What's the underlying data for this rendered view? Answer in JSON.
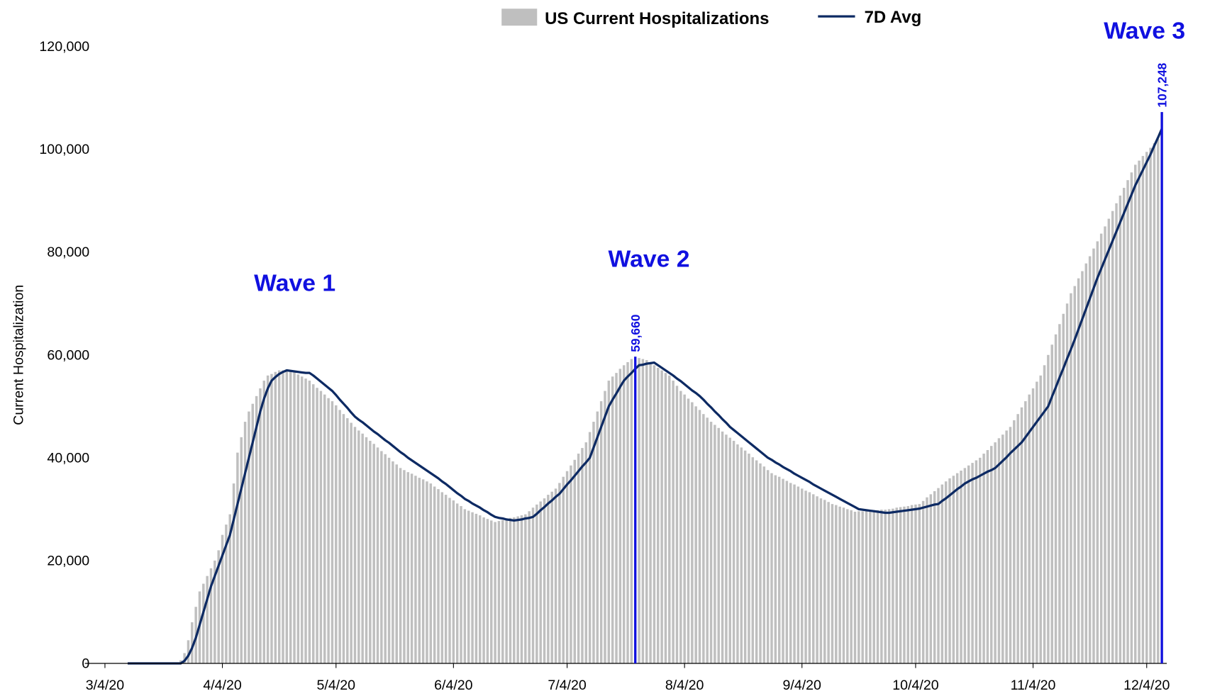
{
  "chart_data": {
    "type": "bar",
    "y_label": "Current Hospitalization",
    "ylim": [
      0,
      120000
    ],
    "yticks": [
      0,
      {
        "value": 20000,
        "label": "20,000"
      },
      {
        "value": 40000,
        "label": "40,000"
      },
      {
        "value": 60000,
        "label": "60,000"
      },
      {
        "value": 80000,
        "label": "80,000"
      },
      {
        "value": 100000,
        "label": "100,000"
      },
      {
        "value": 120000,
        "label": "120,000"
      }
    ],
    "legend": "top",
    "categories": [
      "3/4/20",
      null,
      null,
      null,
      null,
      null,
      null,
      null,
      null,
      null,
      null,
      null,
      null,
      null,
      null,
      null,
      null,
      null,
      null,
      null,
      null,
      null,
      null,
      null,
      null,
      null,
      null,
      null,
      null,
      null,
      null,
      "4/4/20",
      null,
      null,
      null,
      null,
      null,
      null,
      null,
      null,
      null,
      null,
      null,
      null,
      null,
      null,
      null,
      null,
      null,
      null,
      null,
      null,
      null,
      null,
      null,
      null,
      null,
      null,
      null,
      null,
      null,
      "5/4/20",
      null,
      null,
      null,
      null,
      null,
      null,
      null,
      null,
      null,
      null,
      null,
      null,
      null,
      null,
      null,
      null,
      null,
      null,
      null,
      null,
      null,
      null,
      null,
      null,
      null,
      null,
      null,
      null,
      null,
      null,
      "6/4/20",
      null,
      null,
      null,
      null,
      null,
      null,
      null,
      null,
      null,
      null,
      null,
      null,
      null,
      null,
      null,
      null,
      null,
      null,
      null,
      null,
      null,
      null,
      null,
      null,
      null,
      null,
      null,
      null,
      null,
      "7/4/20",
      null,
      null,
      null,
      null,
      null,
      null,
      null,
      null,
      null,
      null,
      null,
      null,
      null,
      null,
      null,
      null,
      null,
      null,
      null,
      null,
      null,
      null,
      null,
      null,
      null,
      null,
      null,
      null,
      null,
      null,
      "8/4/20",
      null,
      null,
      null,
      null,
      null,
      null,
      null,
      null,
      null,
      null,
      null,
      null,
      null,
      null,
      null,
      null,
      null,
      null,
      null,
      null,
      null,
      null,
      null,
      null,
      null,
      null,
      null,
      null,
      null,
      null,
      "9/4/20",
      null,
      null,
      null,
      null,
      null,
      null,
      null,
      null,
      null,
      null,
      null,
      null,
      null,
      null,
      null,
      null,
      null,
      null,
      null,
      null,
      null,
      null,
      null,
      null,
      null,
      null,
      null,
      null,
      null,
      "10/4/20",
      null,
      null,
      null,
      null,
      null,
      null,
      null,
      null,
      null,
      null,
      null,
      null,
      null,
      null,
      null,
      null,
      null,
      null,
      null,
      null,
      null,
      null,
      null,
      null,
      null,
      null,
      null,
      null,
      null,
      null,
      "11/4/20",
      null,
      null,
      null,
      null,
      null,
      null,
      null,
      null,
      null,
      null,
      null,
      null,
      null,
      null,
      null,
      null,
      null,
      null,
      null,
      null,
      null,
      null,
      null,
      null,
      null,
      null,
      null,
      null,
      null,
      "12/4/20",
      null,
      null,
      null,
      null
    ],
    "series": [
      {
        "name": "US Current Hospitalizations",
        "type": "bar",
        "color": "#bfbfbf",
        "values": [
          0,
          0,
          0,
          0,
          0,
          0,
          0,
          0,
          0,
          0,
          0,
          0,
          0,
          0,
          0,
          0,
          0,
          0,
          0,
          0,
          600,
          2000,
          4500,
          8000,
          11000,
          14000,
          15500,
          17000,
          18500,
          20000,
          22000,
          25000,
          27000,
          29000,
          35000,
          41000,
          44000,
          47000,
          49000,
          50500,
          52000,
          53500,
          55000,
          56000,
          56300,
          56700,
          57000,
          57000,
          57200,
          57000,
          56600,
          56200,
          55800,
          55400,
          55000,
          54300,
          53600,
          53000,
          52300,
          51600,
          51000,
          50200,
          49300,
          48500,
          47700,
          46800,
          46000,
          45300,
          44700,
          44000,
          43300,
          42700,
          42000,
          41300,
          40700,
          40000,
          39300,
          38700,
          38000,
          37600,
          37200,
          36900,
          36500,
          36100,
          35800,
          35400,
          35000,
          34400,
          33900,
          33300,
          32800,
          32200,
          31700,
          31100,
          30600,
          30000,
          29700,
          29400,
          29100,
          28800,
          28400,
          28100,
          27800,
          27500,
          27700,
          27900,
          28100,
          28300,
          28400,
          28600,
          28800,
          29000,
          29600,
          30300,
          30900,
          31500,
          32100,
          32800,
          33400,
          34000,
          35100,
          36300,
          37400,
          38500,
          39600,
          40800,
          41900,
          43000,
          45000,
          47000,
          49000,
          51000,
          53000,
          55000,
          55800,
          56500,
          57300,
          58000,
          58600,
          59200,
          59660,
          59400,
          59200,
          59000,
          58500,
          58000,
          57500,
          57000,
          56500,
          56000,
          55000,
          54000,
          53000,
          52300,
          51500,
          50800,
          50000,
          49300,
          48500,
          47800,
          47000,
          46400,
          45800,
          45100,
          44500,
          43900,
          43300,
          42600,
          42000,
          41400,
          40800,
          40100,
          39500,
          38900,
          38300,
          37600,
          37000,
          36600,
          36300,
          35900,
          35500,
          35100,
          34800,
          34400,
          34000,
          33600,
          33300,
          32900,
          32500,
          32100,
          31800,
          31400,
          31000,
          30800,
          30500,
          30300,
          30000,
          29800,
          29500,
          29600,
          29600,
          29700,
          29700,
          29800,
          29800,
          29900,
          29900,
          30000,
          30100,
          30300,
          30400,
          30500,
          30600,
          30800,
          30900,
          31000,
          31600,
          32300,
          32900,
          33500,
          34100,
          34800,
          35400,
          36000,
          36500,
          37000,
          37500,
          38000,
          38500,
          39000,
          39500,
          40000,
          40800,
          41500,
          42300,
          43000,
          43800,
          44500,
          45300,
          46000,
          47300,
          48500,
          49800,
          51000,
          52300,
          53500,
          54800,
          56000,
          58000,
          60000,
          62000,
          64000,
          66000,
          68000,
          70000,
          72000,
          73400,
          74900,
          76300,
          77800,
          79200,
          80700,
          82100,
          83600,
          85000,
          86500,
          88000,
          89500,
          91000,
          92500,
          94000,
          95500,
          97000,
          97800,
          98700,
          99500,
          100300,
          101200,
          102000,
          107248
        ]
      },
      {
        "name": "7D Avg",
        "type": "line",
        "color": "#0d2a63",
        "values": [
          null,
          null,
          null,
          null,
          null,
          null,
          0,
          0,
          0,
          0,
          0,
          0,
          0,
          0,
          0,
          0,
          0,
          0,
          0,
          0,
          0,
          500,
          1500,
          3000,
          5000,
          7500,
          10000,
          12500,
          15000,
          17000,
          19000,
          21000,
          23000,
          25000,
          28000,
          31000,
          34000,
          37000,
          40000,
          43000,
          46000,
          49000,
          51500,
          53500,
          55000,
          55700,
          56300,
          56700,
          57000,
          56900,
          56800,
          56700,
          56600,
          56500,
          56500,
          56000,
          55400,
          54800,
          54200,
          53600,
          53000,
          52200,
          51300,
          50500,
          49700,
          48800,
          48000,
          47400,
          46900,
          46300,
          45700,
          45100,
          44600,
          44000,
          43400,
          42900,
          42300,
          41700,
          41100,
          40600,
          40000,
          39500,
          39000,
          38500,
          38000,
          37500,
          37000,
          36500,
          36000,
          35400,
          34900,
          34300,
          33700,
          33100,
          32600,
          32000,
          31600,
          31100,
          30700,
          30300,
          29800,
          29400,
          28900,
          28500,
          28300,
          28200,
          28000,
          27900,
          27800,
          27900,
          28000,
          28200,
          28300,
          28500,
          29100,
          29800,
          30400,
          31100,
          31700,
          32400,
          33000,
          33900,
          34800,
          35600,
          36500,
          37400,
          38300,
          39100,
          40000,
          42000,
          44000,
          46000,
          48000,
          50000,
          51300,
          52500,
          53800,
          55000,
          55800,
          56500,
          57300,
          58000,
          58100,
          58300,
          58400,
          58500,
          58000,
          57500,
          57000,
          56500,
          56000,
          55400,
          54900,
          54300,
          53700,
          53100,
          52600,
          52000,
          51300,
          50500,
          49800,
          49000,
          48300,
          47500,
          46800,
          46000,
          45400,
          44800,
          44200,
          43600,
          43000,
          42400,
          41800,
          41200,
          40600,
          40000,
          39600,
          39100,
          38700,
          38200,
          37800,
          37400,
          36900,
          36500,
          36100,
          35700,
          35300,
          34800,
          34400,
          34000,
          33600,
          33200,
          32800,
          32400,
          32000,
          31600,
          31200,
          30800,
          30400,
          30000,
          29900,
          29800,
          29700,
          29600,
          29500,
          29400,
          29300,
          29300,
          29400,
          29500,
          29600,
          29700,
          29800,
          29900,
          30000,
          30100,
          30300,
          30500,
          30700,
          30900,
          31000,
          31600,
          32100,
          32700,
          33300,
          33900,
          34400,
          35000,
          35400,
          35800,
          36100,
          36500,
          36900,
          37300,
          37600,
          38000,
          38700,
          39400,
          40100,
          40900,
          41600,
          42300,
          43000,
          44000,
          45000,
          46000,
          47000,
          48000,
          49000,
          50000,
          51900,
          53700,
          55600,
          57400,
          59300,
          61100,
          63000,
          65000,
          67000,
          69000,
          71000,
          73000,
          75000,
          76800,
          78600,
          80400,
          82200,
          84000,
          85800,
          87600,
          89400,
          91200,
          93000,
          94500,
          96000,
          97500,
          99000,
          100700,
          102300,
          104000
        ]
      }
    ],
    "highlights": [
      {
        "label": "Wave 1"
      },
      {
        "label": "Wave 2",
        "value": 59660,
        "value_label": "59,660",
        "color": "#1010e0"
      },
      {
        "label": "Wave 3",
        "value": 107248,
        "value_label": "107,248",
        "color": "#1010e0"
      }
    ]
  }
}
